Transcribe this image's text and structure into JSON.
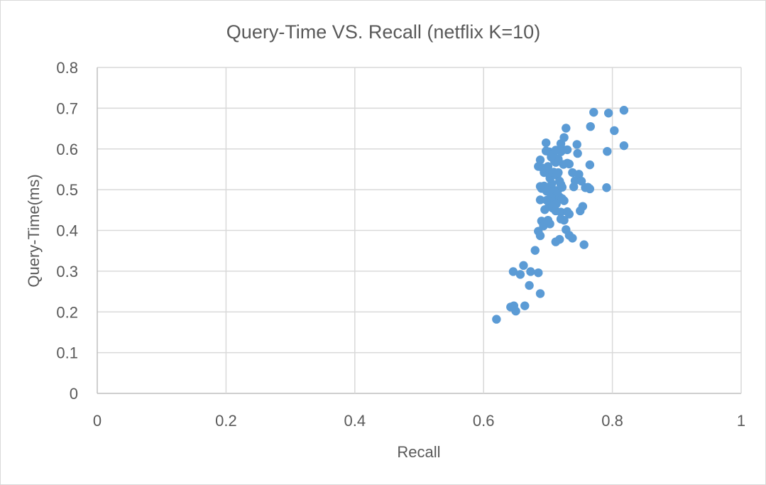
{
  "chart_data": {
    "type": "scatter",
    "title": "Query-Time VS. Recall (netflix K=10)",
    "xlabel": "Recall",
    "ylabel": "Query-Time(ms)",
    "xlim": [
      0,
      1
    ],
    "ylim": [
      0,
      0.8
    ],
    "x_ticks": [
      "0",
      "0.2",
      "0.4",
      "0.6",
      "0.8",
      "1"
    ],
    "y_ticks": [
      "0",
      "0.1",
      "0.2",
      "0.3",
      "0.4",
      "0.5",
      "0.6",
      "0.7",
      "0.8"
    ],
    "grid": true,
    "legend": "none",
    "marker_color": "#5B9BD5",
    "points": [
      [
        0.62,
        0.182
      ],
      [
        0.642,
        0.212
      ],
      [
        0.647,
        0.215
      ],
      [
        0.65,
        0.202
      ],
      [
        0.664,
        0.215
      ],
      [
        0.646,
        0.299
      ],
      [
        0.657,
        0.292
      ],
      [
        0.662,
        0.314
      ],
      [
        0.671,
        0.265
      ],
      [
        0.673,
        0.299
      ],
      [
        0.685,
        0.296
      ],
      [
        0.688,
        0.245
      ],
      [
        0.68,
        0.351
      ],
      [
        0.685,
        0.398
      ],
      [
        0.688,
        0.387
      ],
      [
        0.69,
        0.423
      ],
      [
        0.693,
        0.411
      ],
      [
        0.703,
        0.416
      ],
      [
        0.7,
        0.425
      ],
      [
        0.695,
        0.451
      ],
      [
        0.688,
        0.475
      ],
      [
        0.702,
        0.462
      ],
      [
        0.698,
        0.474
      ],
      [
        0.702,
        0.498
      ],
      [
        0.688,
        0.508
      ],
      [
        0.69,
        0.503
      ],
      [
        0.694,
        0.509
      ],
      [
        0.698,
        0.496
      ],
      [
        0.705,
        0.486
      ],
      [
        0.707,
        0.455
      ],
      [
        0.712,
        0.448
      ],
      [
        0.71,
        0.478
      ],
      [
        0.708,
        0.49
      ],
      [
        0.712,
        0.498
      ],
      [
        0.718,
        0.482
      ],
      [
        0.713,
        0.465
      ],
      [
        0.72,
        0.445
      ],
      [
        0.72,
        0.428
      ],
      [
        0.725,
        0.425
      ],
      [
        0.718,
        0.378
      ],
      [
        0.712,
        0.372
      ],
      [
        0.728,
        0.402
      ],
      [
        0.733,
        0.388
      ],
      [
        0.738,
        0.381
      ],
      [
        0.73,
        0.446
      ],
      [
        0.733,
        0.44
      ],
      [
        0.725,
        0.473
      ],
      [
        0.722,
        0.478
      ],
      [
        0.715,
        0.497
      ],
      [
        0.706,
        0.515
      ],
      [
        0.703,
        0.528
      ],
      [
        0.706,
        0.534
      ],
      [
        0.701,
        0.541
      ],
      [
        0.694,
        0.542
      ],
      [
        0.685,
        0.557
      ],
      [
        0.688,
        0.573
      ],
      [
        0.692,
        0.553
      ],
      [
        0.7,
        0.557
      ],
      [
        0.709,
        0.543
      ],
      [
        0.714,
        0.535
      ],
      [
        0.716,
        0.542
      ],
      [
        0.72,
        0.513
      ],
      [
        0.722,
        0.506
      ],
      [
        0.718,
        0.521
      ],
      [
        0.71,
        0.571
      ],
      [
        0.712,
        0.567
      ],
      [
        0.716,
        0.575
      ],
      [
        0.705,
        0.58
      ],
      [
        0.702,
        0.593
      ],
      [
        0.697,
        0.595
      ],
      [
        0.697,
        0.615
      ],
      [
        0.708,
        0.588
      ],
      [
        0.712,
        0.597
      ],
      [
        0.72,
        0.593
      ],
      [
        0.724,
        0.598
      ],
      [
        0.72,
        0.613
      ],
      [
        0.725,
        0.628
      ],
      [
        0.728,
        0.651
      ],
      [
        0.73,
        0.598
      ],
      [
        0.733,
        0.563
      ],
      [
        0.73,
        0.565
      ],
      [
        0.724,
        0.562
      ],
      [
        0.738,
        0.542
      ],
      [
        0.742,
        0.522
      ],
      [
        0.74,
        0.507
      ],
      [
        0.748,
        0.538
      ],
      [
        0.752,
        0.521
      ],
      [
        0.746,
        0.589
      ],
      [
        0.745,
        0.611
      ],
      [
        0.758,
        0.505
      ],
      [
        0.754,
        0.459
      ],
      [
        0.75,
        0.448
      ],
      [
        0.756,
        0.365
      ],
      [
        0.762,
        0.506
      ],
      [
        0.765,
        0.502
      ],
      [
        0.765,
        0.561
      ],
      [
        0.766,
        0.655
      ],
      [
        0.771,
        0.69
      ],
      [
        0.791,
        0.505
      ],
      [
        0.792,
        0.594
      ],
      [
        0.794,
        0.688
      ],
      [
        0.803,
        0.645
      ],
      [
        0.818,
        0.695
      ],
      [
        0.818,
        0.608
      ]
    ]
  }
}
